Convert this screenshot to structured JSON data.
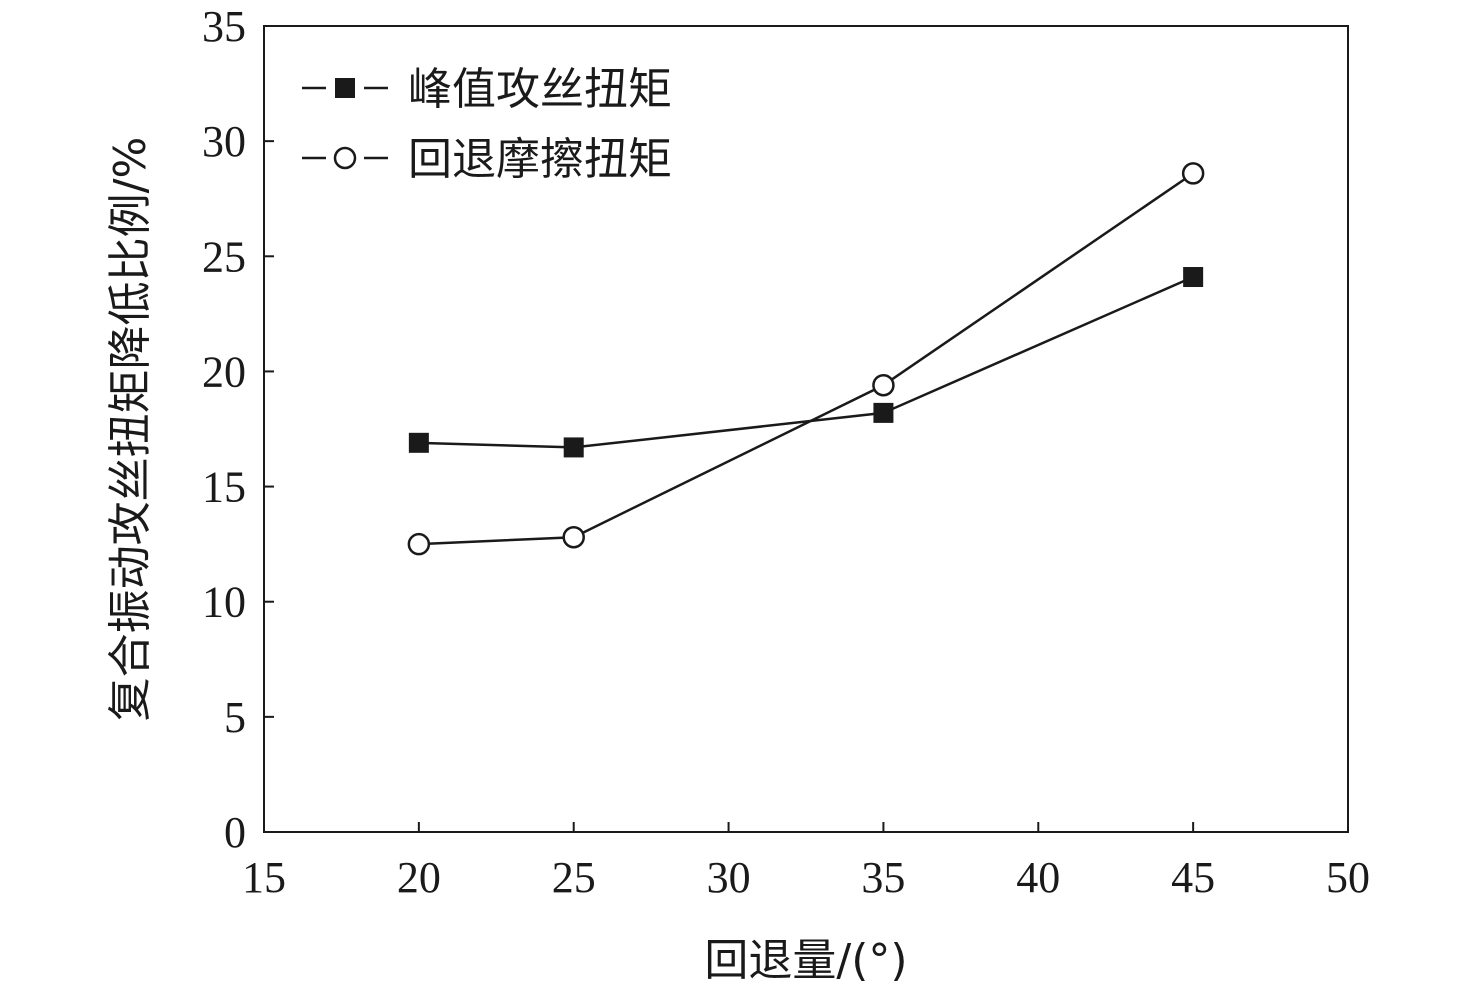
{
  "chart_data": {
    "type": "line",
    "xlabel": "回退量/(°)",
    "ylabel": "复合振动攻丝扭矩降低比例/%",
    "xlim": [
      15,
      50
    ],
    "ylim": [
      0,
      35
    ],
    "xticks": [
      15,
      20,
      25,
      30,
      35,
      40,
      45,
      50
    ],
    "yticks": [
      0,
      5,
      10,
      15,
      20,
      25,
      30,
      35
    ],
    "x": [
      20,
      25,
      35,
      45
    ],
    "series": [
      {
        "name": "峰值攻丝扭矩",
        "marker": "filled-square",
        "values": [
          16.9,
          16.7,
          18.2,
          24.1
        ]
      },
      {
        "name": "回退摩擦扭矩",
        "marker": "open-circle",
        "values": [
          12.5,
          12.8,
          19.4,
          28.6
        ]
      }
    ],
    "grid": false,
    "legend_position": "top-left",
    "colors": {
      "line": "#1a1a1a",
      "marker_fill": "#1a1a1a",
      "open_marker_fill": "#ffffff"
    }
  }
}
